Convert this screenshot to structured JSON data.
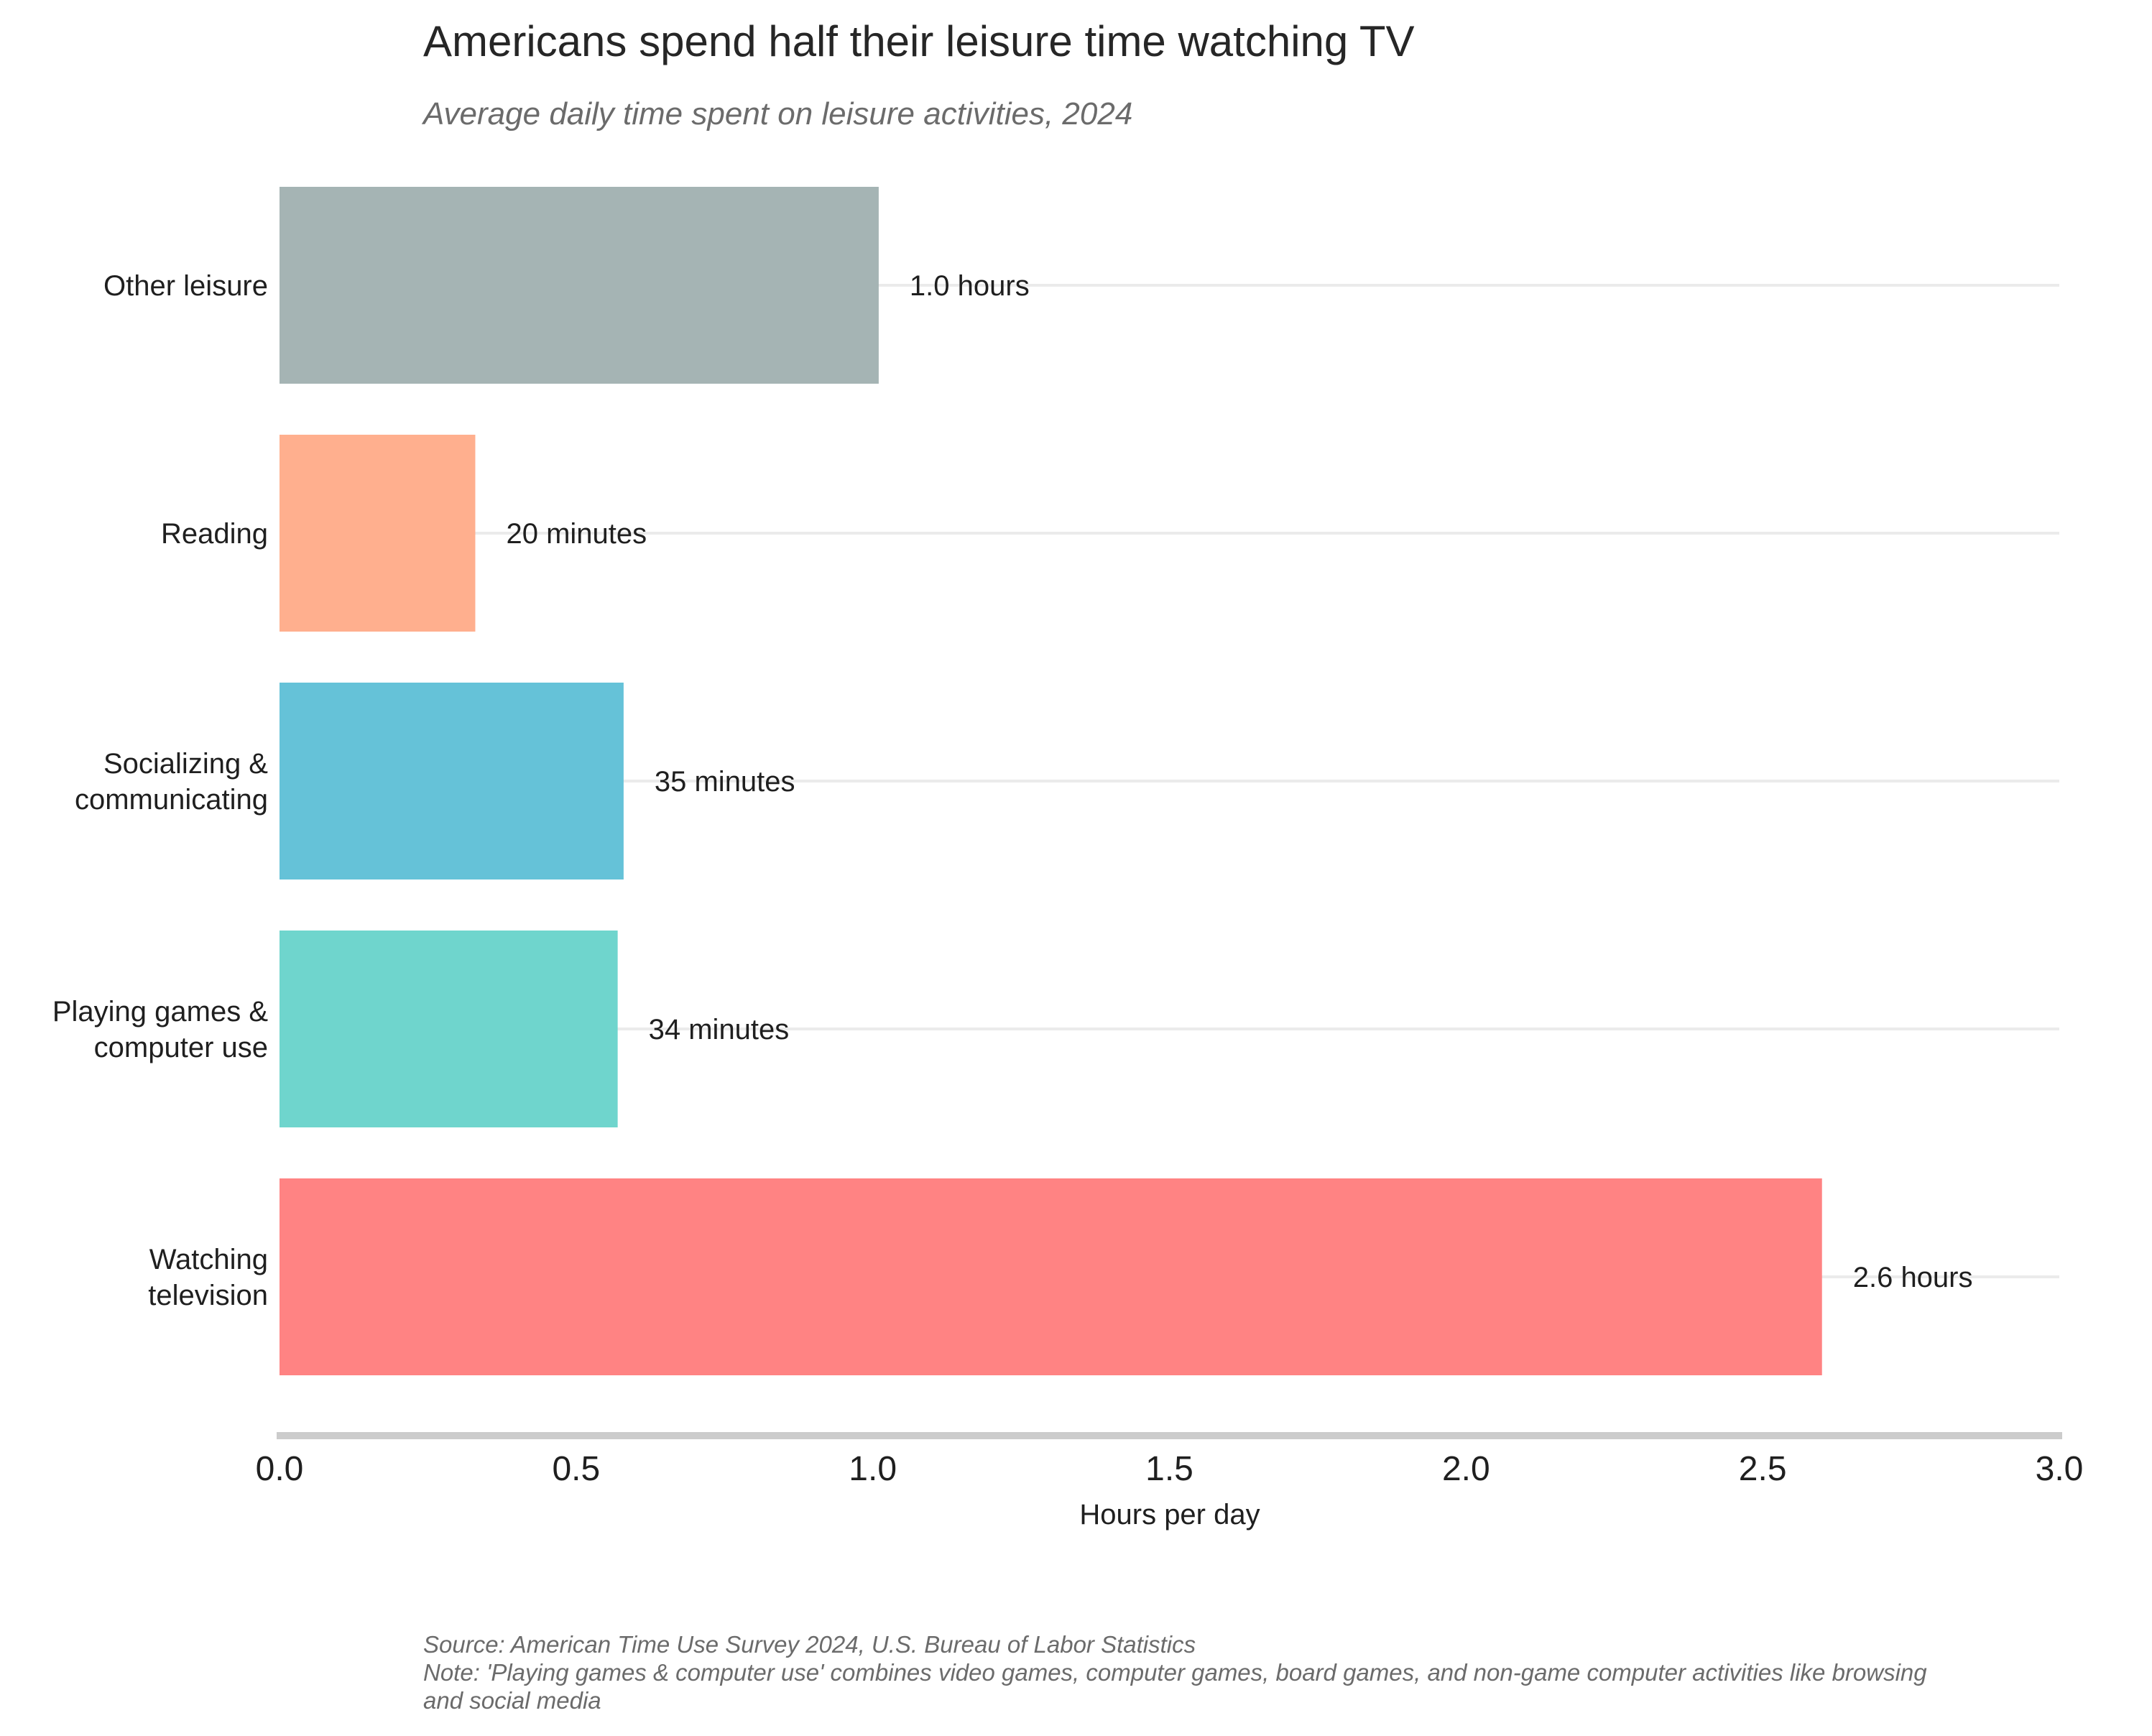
{
  "chart_data": {
    "type": "bar",
    "orientation": "horizontal",
    "title": "Americans spend half their leisure time watching TV",
    "subtitle": "Average daily time spent on leisure activities, 2024",
    "xlabel": "Hours per day",
    "ylabel": "",
    "xlim": [
      0,
      3.0
    ],
    "xticks": [
      "0.0",
      "0.5",
      "1.0",
      "1.5",
      "2.0",
      "2.5",
      "3.0"
    ],
    "grid": "horizontal lines at each category",
    "categories": [
      [
        "Other leisure"
      ],
      [
        "Reading"
      ],
      [
        "Socializing &",
        "communicating"
      ],
      [
        "Playing games &",
        "computer use"
      ],
      [
        "Watching",
        "television"
      ]
    ],
    "values": [
      1.01,
      0.33,
      0.58,
      0.57,
      2.6
    ],
    "value_labels": [
      "1.0 hours",
      "20 minutes",
      "35 minutes",
      "34 minutes",
      "2.6 hours"
    ],
    "colors": [
      "#a5b4b4",
      "#ffaf8e",
      "#65c2d8",
      "#6fd5cd",
      "#ff8383"
    ],
    "source": "Source: American Time Use Survey 2024, U.S. Bureau of Labor Statistics",
    "note_lines": [
      "Note: 'Playing games & computer use' combines video games, computer games, board games, and non-game computer activities like browsing",
      "and social media"
    ]
  }
}
